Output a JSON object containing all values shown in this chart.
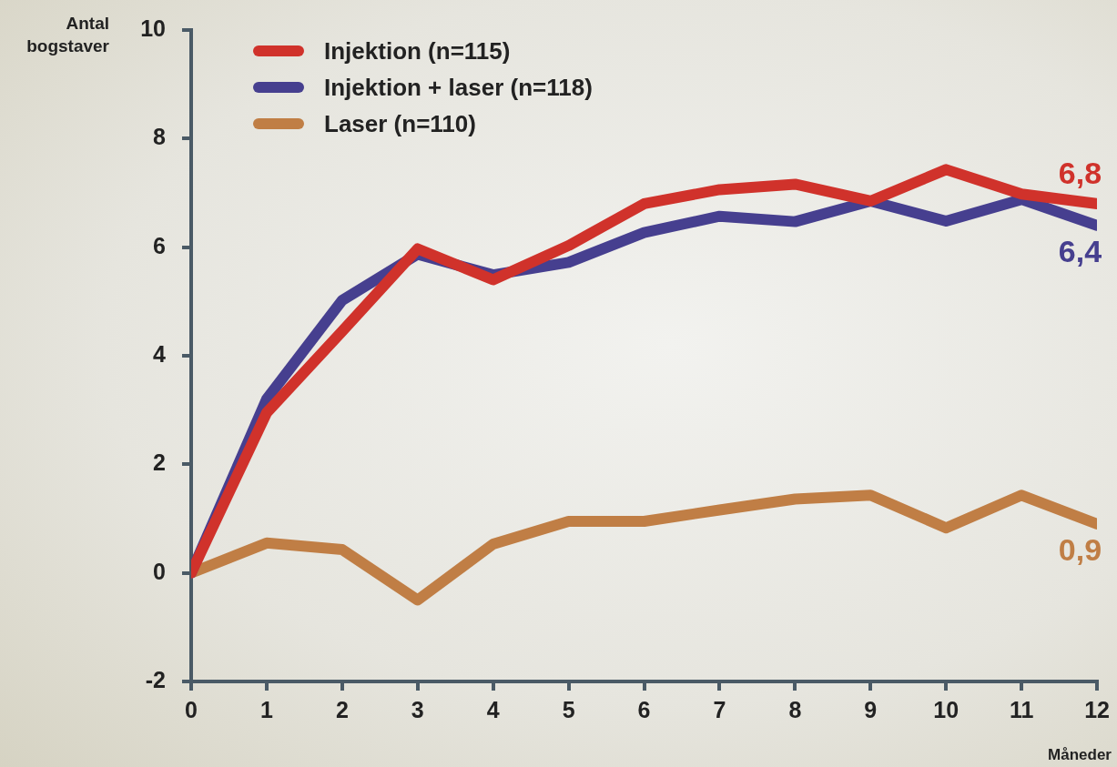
{
  "chart_data": {
    "type": "line",
    "ylabel": "Antal bogstaver",
    "xlabel": "Måneder",
    "x": [
      0,
      1,
      2,
      3,
      4,
      5,
      6,
      7,
      8,
      9,
      10,
      11,
      12
    ],
    "series": [
      {
        "name": "Injektion (n=115)",
        "color": "#d0322b",
        "values": [
          0,
          2.95,
          4.45,
          5.97,
          5.4,
          6.03,
          6.8,
          7.06,
          7.16,
          6.85,
          7.43,
          6.98,
          6.8
        ],
        "value_labels": [
          null,
          null,
          null,
          null,
          null,
          null,
          null,
          null,
          null,
          null,
          null,
          null,
          "6,8"
        ]
      },
      {
        "name": "Injektion + laser (n=118)",
        "color": "#463f8f",
        "values": [
          0,
          3.2,
          5.02,
          5.87,
          5.49,
          5.72,
          6.27,
          6.57,
          6.47,
          6.85,
          6.48,
          6.88,
          6.4
        ],
        "value_labels": [
          null,
          null,
          null,
          null,
          null,
          null,
          null,
          null,
          null,
          null,
          null,
          null,
          "6,4"
        ]
      },
      {
        "name": "Laser (n=110)",
        "color": "#c07e45",
        "values": [
          0,
          0.55,
          0.43,
          -0.5,
          0.53,
          0.95,
          0.95,
          1.16,
          1.36,
          1.43,
          0.83,
          1.43,
          0.9
        ],
        "value_labels": [
          null,
          null,
          null,
          null,
          null,
          null,
          null,
          null,
          null,
          null,
          null,
          null,
          "0,9"
        ]
      }
    ],
    "xlim": [
      0,
      12
    ],
    "xticks": [
      0,
      1,
      2,
      3,
      4,
      5,
      6,
      7,
      8,
      9,
      10,
      11,
      12
    ],
    "ylim": [
      -2,
      10
    ],
    "yticks": [
      -2,
      0,
      2,
      4,
      6,
      8,
      10
    ],
    "grid": false,
    "legend": "top left",
    "marker": "none",
    "line_style": "solid"
  }
}
